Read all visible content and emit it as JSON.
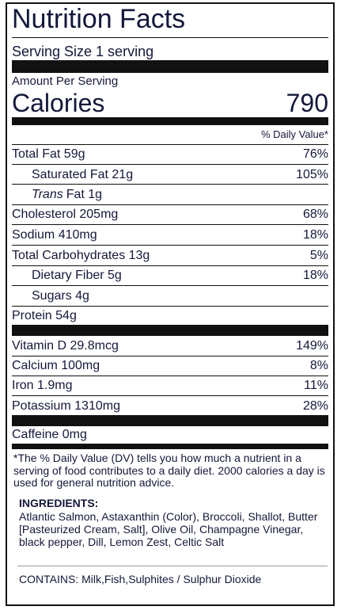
{
  "title": "Nutrition Facts",
  "serving_size": "Serving Size 1 serving",
  "amount_per_serving": "Amount Per Serving",
  "calories": {
    "label": "Calories",
    "value": 790
  },
  "daily_value_header": "% Daily Value*",
  "nutrients": [
    {
      "label": "Total Fat 59g",
      "dv": "76%"
    },
    {
      "label": "Saturated Fat 21g",
      "dv": "105%"
    },
    {
      "label_italic": "Trans",
      "label": "Fat 1g"
    },
    {
      "label": "Cholesterol 205mg",
      "dv": "68%"
    },
    {
      "label": "Sodium 410mg",
      "dv": "18%"
    },
    {
      "label": "Total Carbohydrates 13g",
      "dv": "5%"
    },
    {
      "label": "Dietary Fiber 5g",
      "dv": "18%"
    },
    {
      "label": "Sugars 4g"
    },
    {
      "label": "Protein 54g"
    }
  ],
  "vitamins": [
    {
      "label": "Vitamin D 29.8mcg",
      "dv": "149%"
    },
    {
      "label": "Calcium 100mg",
      "dv": "8%"
    },
    {
      "label": "Iron 1.9mg",
      "dv": "11%"
    },
    {
      "label": "Potassium 1310mg",
      "dv": "28%"
    }
  ],
  "caffeine": "Caffeine 0mg",
  "footnote": "*The % Daily Value (DV) tells you how much a nutrient in a serving of food contributes to a daily diet. 2000 calories a day is used for general nutrition advice.",
  "ingredients": {
    "heading": "INGREDIENTS:",
    "text": "Atlantic Salmon, Astaxanthin (Color), Broccoli, Shallot, Butter [Pasteurized Cream, Salt], Olive Oil, Champagne Vinegar, black pepper, Dill, Lemon Zest, Celtic Salt"
  },
  "contains": "CONTAINS: Milk,Fish,Sulphites / Sulphur Dioxide"
}
